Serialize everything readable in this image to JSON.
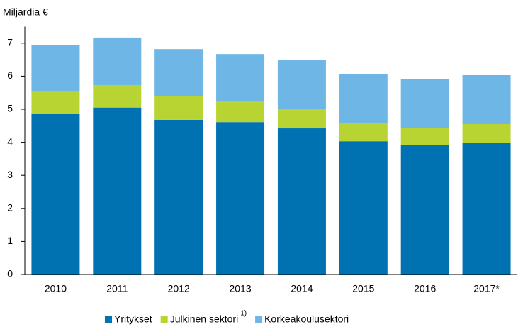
{
  "chart_data": {
    "type": "stacked_bar",
    "y_axis_label": "Miljardia €",
    "categories": [
      "2010",
      "2011",
      "2012",
      "2013",
      "2014",
      "2015",
      "2016",
      "2017*"
    ],
    "series": [
      {
        "name": "Yritykset",
        "color": "#0072b1",
        "values": [
          4.85,
          5.05,
          4.68,
          4.61,
          4.42,
          4.03,
          3.91,
          3.99
        ]
      },
      {
        "name": "Julkinen sektori",
        "note": "1)",
        "color": "#b7d432",
        "values": [
          0.7,
          0.68,
          0.71,
          0.63,
          0.6,
          0.56,
          0.53,
          0.56
        ]
      },
      {
        "name": "Korkeakoulusektori",
        "color": "#6db6e6",
        "values": [
          1.4,
          1.44,
          1.43,
          1.43,
          1.48,
          1.48,
          1.48,
          1.48
        ]
      }
    ],
    "ylim": [
      0,
      7.5
    ],
    "yticks": [
      0,
      1,
      2,
      3,
      4,
      5,
      6,
      7
    ],
    "grid": false,
    "legend": "bottom"
  }
}
